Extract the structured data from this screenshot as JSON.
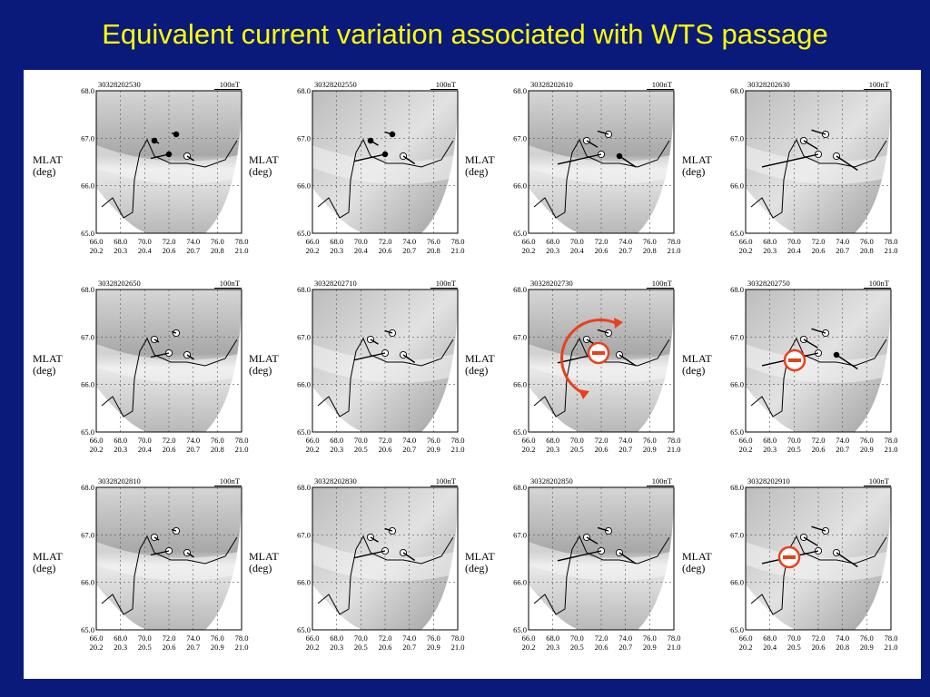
{
  "title": "Equivalent current variation associated with WTS passage",
  "ylabel_line1": "MLAT",
  "ylabel_line2": "(deg)",
  "scale_label": "100nT",
  "y_ticks": [
    "68.0",
    "67.0",
    "66.0",
    "65.0"
  ],
  "x_ticks_top": [
    "66.0",
    "68.0",
    "70.0",
    "72.0",
    "74.0",
    "76.0",
    "78.0"
  ],
  "panels": [
    {
      "id": "30328202530",
      "x_ticks_bottom": [
        "20.2",
        "20.3",
        "20.4",
        "20.6",
        "20.7",
        "20.8",
        "21.0"
      ],
      "marker": "none"
    },
    {
      "id": "30328202550",
      "x_ticks_bottom": [
        "20.2",
        "20.3",
        "20.4",
        "20.6",
        "20.7",
        "20.8",
        "21.0"
      ],
      "marker": "none"
    },
    {
      "id": "30328202610",
      "x_ticks_bottom": [
        "20.2",
        "20.3",
        "20.4",
        "20.6",
        "20.7",
        "20.8",
        "21.0"
      ],
      "marker": "none"
    },
    {
      "id": "30328202630",
      "x_ticks_bottom": [
        "20.2",
        "20.3",
        "20.4",
        "20.6",
        "20.7",
        "20.8",
        "21.0"
      ],
      "marker": "none"
    },
    {
      "id": "30328202650",
      "x_ticks_bottom": [
        "20.2",
        "20.3",
        "20.4",
        "20.6",
        "20.7",
        "20.8",
        "21.0"
      ],
      "marker": "none"
    },
    {
      "id": "30328202710",
      "x_ticks_bottom": [
        "20.2",
        "20.3",
        "20.5",
        "20.6",
        "20.7",
        "20.9",
        "21.0"
      ],
      "marker": "none"
    },
    {
      "id": "30328202730",
      "x_ticks_bottom": [
        "20.2",
        "20.3",
        "20.5",
        "20.6",
        "20.7",
        "20.9",
        "21.0"
      ],
      "marker": "circle-minus"
    },
    {
      "id": "30328202750",
      "x_ticks_bottom": [
        "20.2",
        "20.3",
        "20.5",
        "20.6",
        "20.7",
        "20.9",
        "21.0"
      ],
      "marker": "minus"
    },
    {
      "id": "30328202810",
      "x_ticks_bottom": [
        "20.2",
        "20.3",
        "20.5",
        "20.6",
        "20.7",
        "20.9",
        "21.0"
      ],
      "marker": "none"
    },
    {
      "id": "30328202830",
      "x_ticks_bottom": [
        "20.2",
        "20.3",
        "20.5",
        "20.6",
        "20.7",
        "20.9",
        "21.0"
      ],
      "marker": "none"
    },
    {
      "id": "30328202850",
      "x_ticks_bottom": [
        "20.2",
        "20.3",
        "20.5",
        "20.6",
        "20.7",
        "20.9",
        "21.0"
      ],
      "marker": "none"
    },
    {
      "id": "30328202910",
      "x_ticks_bottom": [
        "20.2",
        "20.4",
        "20.5",
        "20.6",
        "20.8",
        "20.9",
        "21.0"
      ],
      "marker": "minus"
    }
  ],
  "colors": {
    "background": "#0a1a7a",
    "title": "#ffff00",
    "annotation": "#e8401c"
  },
  "icons": {
    "minus_marker": "minus-circle-icon",
    "rotation_marker": "counterclockwise-arrow-icon"
  }
}
